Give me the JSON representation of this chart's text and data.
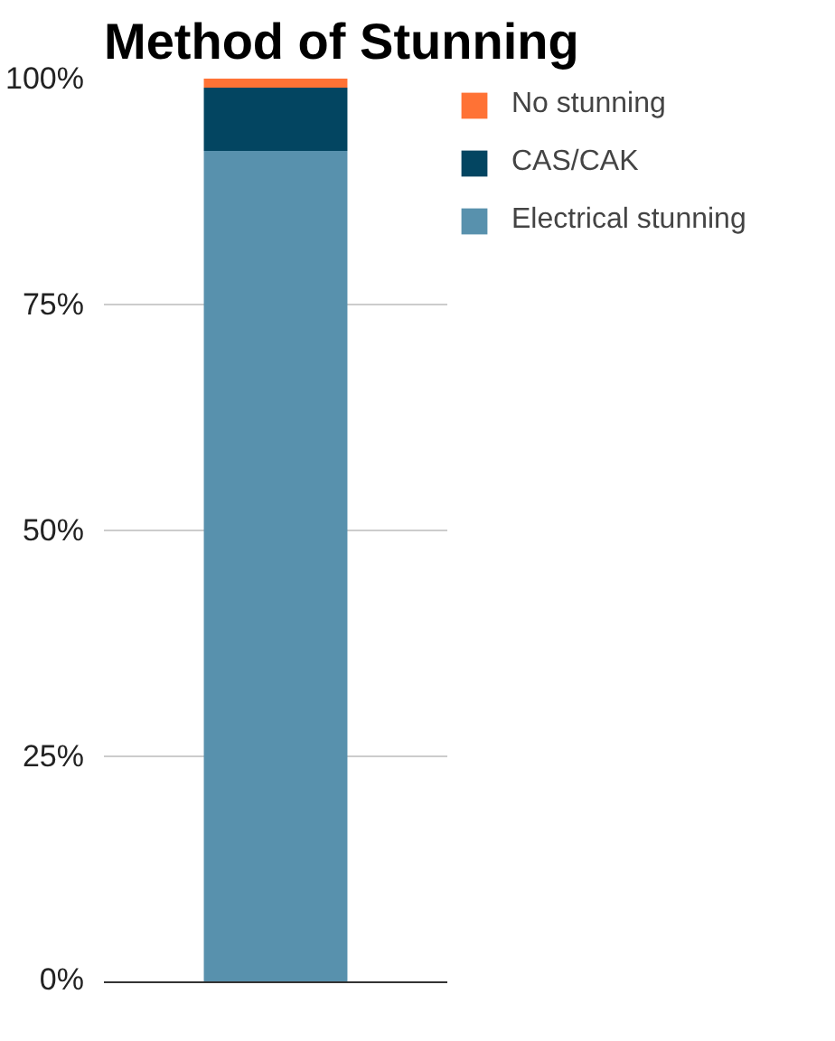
{
  "chart_data": {
    "type": "bar",
    "title": "Method of Stunning",
    "stacked": true,
    "categories": [
      null
    ],
    "series": [
      {
        "name": "Electrical stunning",
        "color": "#5891ad",
        "values": [
          92
        ]
      },
      {
        "name": "CAS/CAK",
        "color": "#034561",
        "values": [
          7
        ]
      },
      {
        "name": "No stunning",
        "color": "#ff7235",
        "values": [
          1
        ]
      }
    ],
    "ylim": [
      0,
      100
    ],
    "yticks": [
      {
        "value": 0,
        "label": "0%"
      },
      {
        "value": 25,
        "label": "25%"
      },
      {
        "value": 50,
        "label": "50%"
      },
      {
        "value": 75,
        "label": "75%"
      },
      {
        "value": 100,
        "label": "100%"
      }
    ],
    "grid": "y",
    "legend": "right",
    "tick_labels": "y"
  }
}
